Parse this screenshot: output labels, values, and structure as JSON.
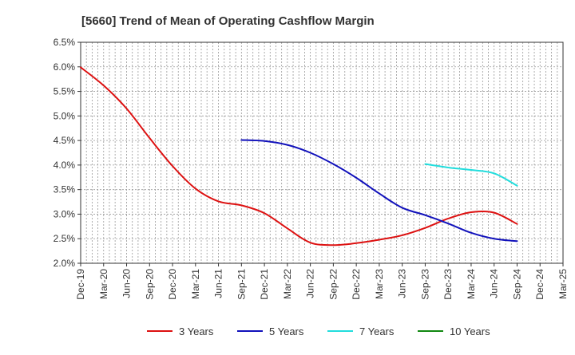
{
  "chart_data": {
    "type": "line",
    "title": "[5660]  Trend of Mean of Operating Cashflow Margin",
    "xlabel": "",
    "ylabel": "",
    "ylim": [
      2.0,
      6.5
    ],
    "y_ticks": [
      "6.5%",
      "6.0%",
      "5.5%",
      "5.0%",
      "4.5%",
      "4.0%",
      "3.5%",
      "3.0%",
      "2.5%",
      "2.0%"
    ],
    "y_tick_values": [
      6.5,
      6.0,
      5.5,
      5.0,
      4.5,
      4.0,
      3.5,
      3.0,
      2.5,
      2.0
    ],
    "categories": [
      "Dec-19",
      "Mar-20",
      "Jun-20",
      "Sep-20",
      "Dec-20",
      "Mar-21",
      "Jun-21",
      "Sep-21",
      "Dec-21",
      "Mar-22",
      "Jun-22",
      "Sep-22",
      "Dec-22",
      "Mar-23",
      "Jun-23",
      "Sep-23",
      "Dec-23",
      "Mar-24",
      "Jun-24",
      "Sep-24",
      "Dec-24",
      "Mar-25"
    ],
    "grid": true,
    "legend_position": "bottom",
    "series": [
      {
        "name": "3 Years",
        "color": "#dd1111",
        "values": [
          5.99,
          5.62,
          5.15,
          4.55,
          3.98,
          3.52,
          3.26,
          3.18,
          3.02,
          2.71,
          2.42,
          2.37,
          2.41,
          2.48,
          2.57,
          2.72,
          2.91,
          3.04,
          3.03,
          2.8,
          null,
          null
        ]
      },
      {
        "name": "5 Years",
        "color": "#1111bb",
        "values": [
          null,
          null,
          null,
          null,
          null,
          null,
          null,
          4.51,
          4.49,
          4.41,
          4.25,
          4.02,
          3.74,
          3.42,
          3.13,
          2.98,
          2.81,
          2.62,
          2.5,
          2.45,
          null,
          null
        ]
      },
      {
        "name": "7 Years",
        "color": "#22dddd",
        "values": [
          null,
          null,
          null,
          null,
          null,
          null,
          null,
          null,
          null,
          null,
          null,
          null,
          null,
          null,
          null,
          4.02,
          3.95,
          3.9,
          3.83,
          3.58,
          null,
          null
        ]
      },
      {
        "name": "10 Years",
        "color": "#118811",
        "values": [
          null,
          null,
          null,
          null,
          null,
          null,
          null,
          null,
          null,
          null,
          null,
          null,
          null,
          null,
          null,
          null,
          null,
          null,
          null,
          null,
          null,
          null
        ]
      }
    ]
  }
}
